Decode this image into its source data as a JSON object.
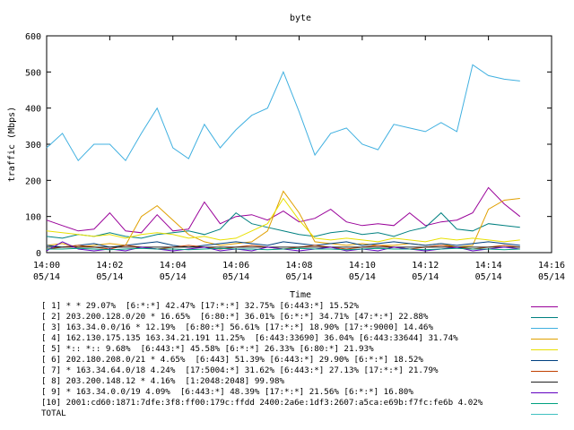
{
  "chart_data": {
    "type": "line",
    "title": "byte",
    "xlabel": "Time",
    "ylabel": "traffic (Mbps)",
    "ylim": [
      0,
      600
    ],
    "yticks": [
      "0",
      "100",
      "200",
      "300",
      "400",
      "500",
      "600"
    ],
    "xticks": [
      {
        "time": "14:00",
        "date": "05/14"
      },
      {
        "time": "14:02",
        "date": "05/14"
      },
      {
        "time": "14:04",
        "date": "05/14"
      },
      {
        "time": "14:06",
        "date": "05/14"
      },
      {
        "time": "14:08",
        "date": "05/14"
      },
      {
        "time": "14:10",
        "date": "05/14"
      },
      {
        "time": "14:12",
        "date": "05/14"
      },
      {
        "time": "14:14",
        "date": "05/14"
      },
      {
        "time": "14:16",
        "date": "05/14"
      }
    ],
    "x_minutes": [
      0,
      0.5,
      1,
      1.5,
      2,
      2.5,
      3,
      3.5,
      4,
      4.5,
      5,
      5.5,
      6,
      6.5,
      7,
      7.5,
      8,
      8.5,
      9,
      9.5,
      10,
      10.5,
      11,
      11.5,
      12,
      12.5,
      13,
      13.5,
      14,
      14.5,
      15
    ],
    "grid": false,
    "legend_position": "bottom",
    "series": [
      {
        "label": "[ 1] * * 29.07%  [6:*:*] 42.47% [17:*:*] 32.75% [6:443:*] 15.52%",
        "color": "#990099",
        "values": [
          90,
          75,
          60,
          65,
          110,
          60,
          55,
          105,
          60,
          65,
          140,
          80,
          100,
          105,
          90,
          115,
          85,
          95,
          120,
          85,
          75,
          80,
          75,
          110,
          75,
          85,
          90,
          110,
          180,
          135,
          100
        ]
      },
      {
        "label": "[ 2] 203.200.128.0/20 * 16.65%  [6:80:*] 36.01% [6:*:*] 34.71% [47:*:*] 22.88%",
        "color": "#008080",
        "values": [
          45,
          40,
          50,
          45,
          55,
          45,
          40,
          50,
          55,
          60,
          50,
          65,
          110,
          80,
          70,
          60,
          50,
          45,
          55,
          60,
          50,
          55,
          45,
          60,
          70,
          110,
          65,
          60,
          80,
          75,
          70
        ]
      },
      {
        "label": "[ 3] 163.34.0.0/16 * 12.19%  [6:80:*] 56.61% [17:*:*] 18.90% [17:*:9000] 14.46%",
        "color": "#40b0e0",
        "values": [
          290,
          330,
          255,
          300,
          300,
          255,
          330,
          400,
          290,
          260,
          355,
          290,
          340,
          380,
          400,
          500,
          390,
          270,
          330,
          345,
          300,
          285,
          355,
          345,
          335,
          360,
          335,
          520,
          490,
          480,
          475
        ]
      },
      {
        "label": "[ 4] 162.130.175.135 163.34.21.191 11.25%  [6:443:33690] 36.04% [6:443:33644] 31.74%",
        "color": "#e0a000",
        "values": [
          20,
          25,
          15,
          20,
          25,
          20,
          100,
          130,
          90,
          50,
          30,
          20,
          25,
          30,
          60,
          170,
          110,
          30,
          25,
          20,
          25,
          20,
          20,
          25,
          20,
          25,
          15,
          20,
          120,
          145,
          150
        ]
      },
      {
        "label": "[ 5] *:: *:: 9.68%  [6:443:*] 45.58% [6:*:*] 26.33% [6:80:*] 21.93%",
        "color": "#e8e000",
        "values": [
          60,
          55,
          50,
          45,
          50,
          40,
          50,
          55,
          50,
          40,
          45,
          35,
          40,
          60,
          80,
          150,
          90,
          40,
          35,
          40,
          35,
          30,
          40,
          35,
          30,
          40,
          35,
          40,
          35,
          30,
          35
        ]
      },
      {
        "label": "[ 6] 202.180.208.0/21 * 4.65%  [6:443] 51.39% [6:443:*] 29.90% [6:*:*] 18.52%",
        "color": "#004080",
        "values": [
          20,
          15,
          20,
          25,
          15,
          20,
          25,
          30,
          20,
          15,
          20,
          25,
          30,
          25,
          20,
          30,
          25,
          20,
          25,
          30,
          20,
          25,
          30,
          25,
          20,
          25,
          20,
          25,
          30,
          25,
          20
        ]
      },
      {
        "label": "[ 7] * 163.34.64.0/18 4.24%  [17:5004:*] 31.62% [6:443:*] 27.13% [17:*:*] 21.79%",
        "color": "#c04000",
        "values": [
          10,
          15,
          20,
          15,
          10,
          20,
          15,
          10,
          15,
          20,
          15,
          10,
          15,
          20,
          15,
          10,
          15,
          20,
          15,
          10,
          15,
          20,
          15,
          10,
          15,
          20,
          15,
          10,
          15,
          20,
          15
        ]
      },
      {
        "label": "[ 8] 203.200.148.12 * 4.16%  [1:2048:2048] 99.98%",
        "color": "#202020",
        "values": [
          15,
          15,
          15,
          15,
          15,
          15,
          15,
          15,
          15,
          15,
          15,
          15,
          15,
          15,
          15,
          15,
          15,
          15,
          15,
          15,
          15,
          15,
          15,
          15,
          15,
          15,
          15,
          15,
          15,
          15,
          15
        ]
      },
      {
        "label": "[ 9] * 163.34.0.0/19 4.09%  [6:443:*] 48.39% [17:*:*] 21.56% [6:*:*] 16.80%",
        "color": "#6000c0",
        "values": [
          5,
          30,
          10,
          5,
          10,
          5,
          15,
          10,
          5,
          10,
          15,
          5,
          10,
          5,
          15,
          10,
          5,
          10,
          15,
          5,
          10,
          5,
          15,
          10,
          5,
          10,
          15,
          5,
          10,
          15,
          10
        ]
      },
      {
        "label": "[10] 2001:cd60:1871:7dfe:3f8:ff00:179c:ffdd 2400:2a6e:1df3:2607:a5ca:e69b:f7fc:fe6b 4.02%",
        "color": "#00a080",
        "values": [
          10,
          10,
          12,
          10,
          8,
          10,
          12,
          10,
          10,
          8,
          10,
          12,
          10,
          10,
          8,
          10,
          12,
          10,
          10,
          8,
          10,
          12,
          10,
          10,
          8,
          10,
          12,
          10,
          10,
          8,
          10
        ]
      },
      {
        "label": "TOTAL",
        "color": "#40c0c0",
        "values": []
      }
    ]
  }
}
